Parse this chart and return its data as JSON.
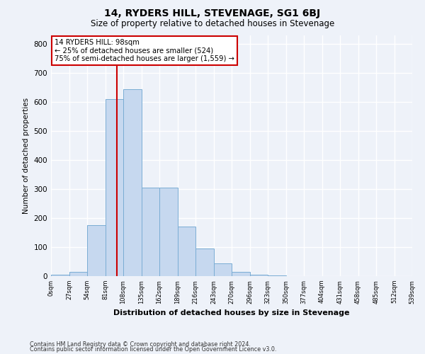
{
  "title": "14, RYDERS HILL, STEVENAGE, SG1 6BJ",
  "subtitle": "Size of property relative to detached houses in Stevenage",
  "xlabel": "Distribution of detached houses by size in Stevenage",
  "ylabel": "Number of detached properties",
  "bar_values": [
    5,
    15,
    175,
    610,
    645,
    305,
    305,
    170,
    95,
    45,
    15,
    5,
    2,
    1,
    0,
    0,
    0,
    0,
    0,
    0
  ],
  "bin_labels": [
    "0sqm",
    "27sqm",
    "54sqm",
    "81sqm",
    "108sqm",
    "135sqm",
    "162sqm",
    "189sqm",
    "216sqm",
    "243sqm",
    "270sqm",
    "296sqm",
    "323sqm",
    "350sqm",
    "377sqm",
    "404sqm",
    "431sqm",
    "458sqm",
    "485sqm",
    "512sqm",
    "539sqm"
  ],
  "bar_color": "#c6d8ef",
  "bar_edge_color": "#7aadd4",
  "background_color": "#eef2f9",
  "grid_color": "#ffffff",
  "ylim": [
    0,
    830
  ],
  "yticks": [
    0,
    100,
    200,
    300,
    400,
    500,
    600,
    700,
    800
  ],
  "annotation_text": "14 RYDERS HILL: 98sqm\n← 25% of detached houses are smaller (524)\n75% of semi-detached houses are larger (1,559) →",
  "annotation_box_color": "#ffffff",
  "annotation_box_edge_color": "#cc0000",
  "vline_color": "#cc0000",
  "vline_x": 3.63,
  "footnote1": "Contains HM Land Registry data © Crown copyright and database right 2024.",
  "footnote2": "Contains public sector information licensed under the Open Government Licence v3.0."
}
